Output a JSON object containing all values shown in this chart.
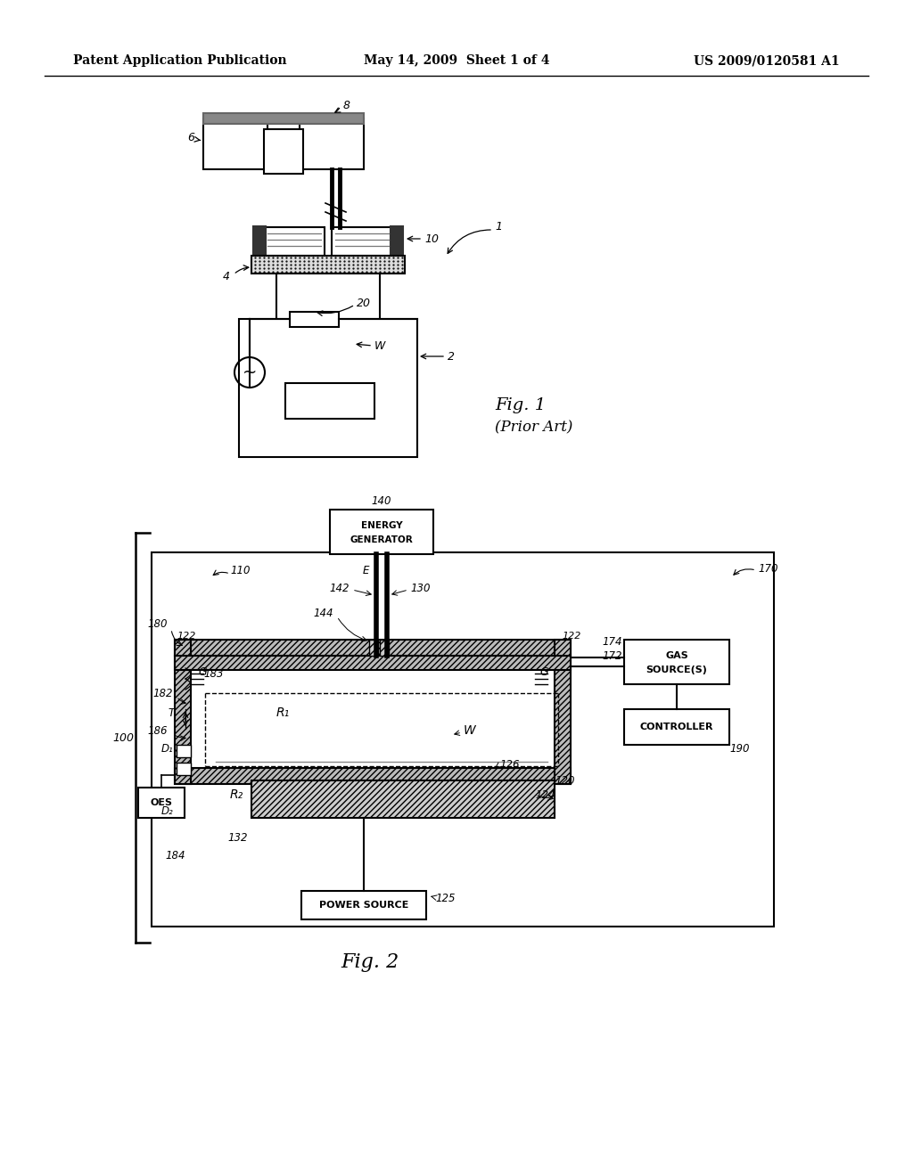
{
  "header_left": "Patent Application Publication",
  "header_mid": "May 14, 2009  Sheet 1 of 4",
  "header_right": "US 2009/0120581 A1",
  "fig1_label": "Fig. 1",
  "fig1_sub": "(Prior Art)",
  "fig2_label": "Fig. 2"
}
